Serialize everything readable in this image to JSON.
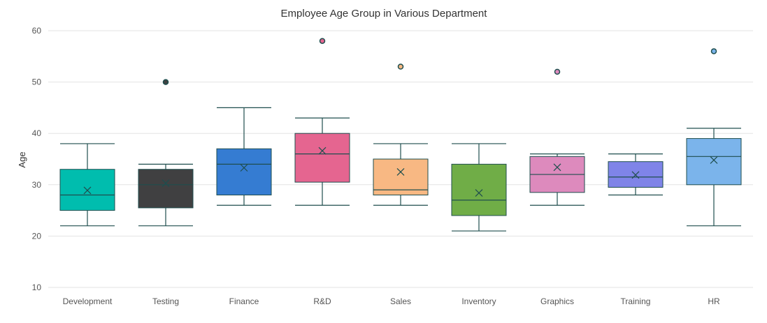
{
  "chart_data": {
    "type": "boxplot",
    "title": "Employee Age Group in Various Department",
    "ylabel": "Age",
    "xlabel": "",
    "ylim": [
      10,
      60
    ],
    "yticks": [
      10,
      20,
      30,
      40,
      50,
      60
    ],
    "grid": true,
    "categories": [
      "Development",
      "Testing",
      "Finance",
      "R&D",
      "Sales",
      "Inventory",
      "Graphics",
      "Training",
      "HR"
    ],
    "series": [
      {
        "category": "Development",
        "min": 22,
        "q1": 25,
        "median": 28,
        "q3": 33,
        "max": 38,
        "mean": 28.9,
        "outliers": [],
        "color": "#00bdae"
      },
      {
        "category": "Testing",
        "min": 22,
        "q1": 25.5,
        "median": 30,
        "q3": 33,
        "max": 34,
        "mean": 30.3,
        "outliers": [
          50
        ],
        "color": "#404041"
      },
      {
        "category": "Finance",
        "min": 26,
        "q1": 28,
        "median": 34,
        "q3": 37,
        "max": 45,
        "mean": 33.3,
        "outliers": [],
        "color": "#357cd2"
      },
      {
        "category": "R&D",
        "min": 26,
        "q1": 30.5,
        "median": 36,
        "q3": 40,
        "max": 43,
        "mean": 36.6,
        "outliers": [
          58
        ],
        "color": "#e56590"
      },
      {
        "category": "Sales",
        "min": 26,
        "q1": 28,
        "median": 29,
        "q3": 35,
        "max": 38,
        "mean": 32.5,
        "outliers": [
          53
        ],
        "color": "#f8b883"
      },
      {
        "category": "Inventory",
        "min": 21,
        "q1": 24,
        "median": 27,
        "q3": 34,
        "max": 38,
        "mean": 28.4,
        "outliers": [],
        "color": "#70ad47"
      },
      {
        "category": "Graphics",
        "min": 26,
        "q1": 28.5,
        "median": 32,
        "q3": 35.5,
        "max": 36,
        "mean": 33.4,
        "outliers": [
          52
        ],
        "color": "#dd8abd"
      },
      {
        "category": "Training",
        "min": 28,
        "q1": 29.5,
        "median": 31.5,
        "q3": 34.5,
        "max": 36,
        "mean": 31.9,
        "outliers": [],
        "color": "#7f84e8"
      },
      {
        "category": "HR",
        "min": 22,
        "q1": 30,
        "median": 35.5,
        "q3": 39,
        "max": 41,
        "mean": 34.8,
        "outliers": [
          56
        ],
        "color": "#7bb4eb"
      }
    ]
  }
}
